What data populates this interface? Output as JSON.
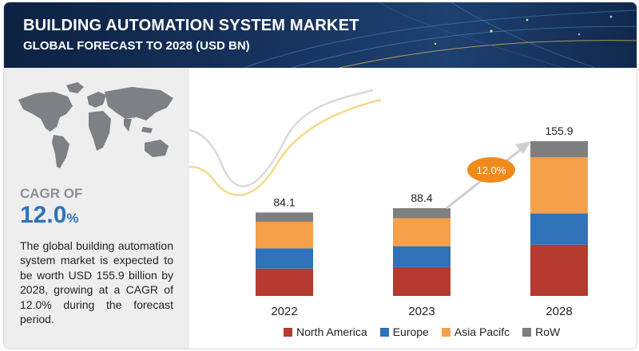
{
  "header": {
    "title": "BUILDING AUTOMATION SYSTEM MARKET",
    "subtitle": "GLOBAL FORECAST TO 2028 (USD BN)"
  },
  "sidebar": {
    "cagr_label": "CAGR OF",
    "cagr_number": "12.0",
    "cagr_percent_sign": "%",
    "description": "The global building automation system market is expected to be worth USD 155.9 billion by 2028, growing at a CAGR of 12.0% during the forecast period."
  },
  "chart_data": {
    "type": "bar",
    "stacked": true,
    "categories": [
      "2022",
      "2023",
      "2028"
    ],
    "totals": [
      84.1,
      88.4,
      155.9
    ],
    "total_labels": [
      "84.1",
      "88.4",
      "155.9"
    ],
    "series": [
      {
        "name": "North America",
        "color": "#b63a2f",
        "values": [
          27.5,
          29.0,
          51.6
        ]
      },
      {
        "name": "Europe",
        "color": "#2f72b8",
        "values": [
          20.5,
          21.1,
          31.5
        ]
      },
      {
        "name": "Asia Pacifc",
        "color": "#f5a04a",
        "values": [
          26.7,
          28.2,
          56.5
        ]
      },
      {
        "name": "RoW",
        "color": "#7f7f7f",
        "values": [
          9.4,
          10.1,
          16.3
        ]
      }
    ],
    "growth_callout": "12.0%",
    "callout_color": "#f08a1c",
    "ylim": [
      0,
      160
    ],
    "grid": false,
    "legend_position": "bottom"
  }
}
